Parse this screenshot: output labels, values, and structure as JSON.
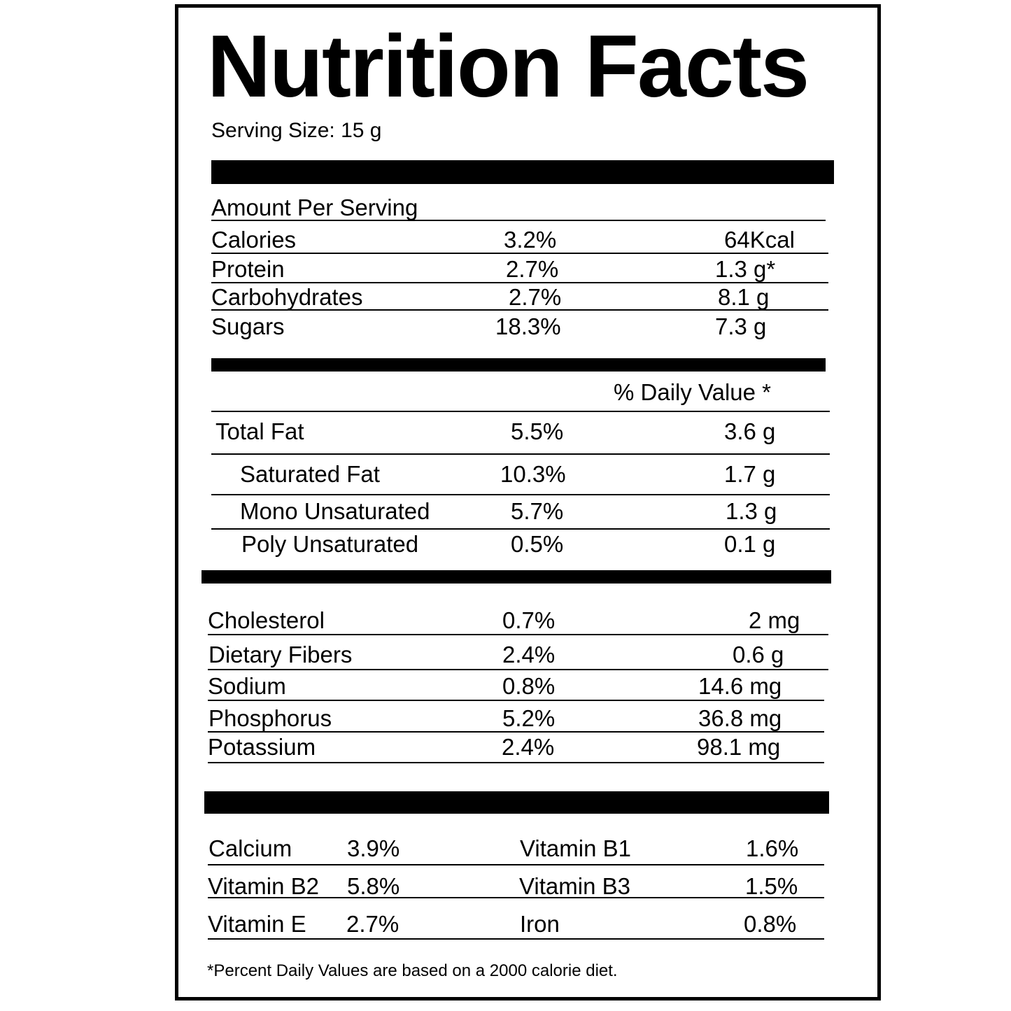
{
  "title": "Nutrition Facts",
  "serving_size": "Serving Size: 15 g",
  "amount_per_serving": "Amount Per Serving",
  "daily_value_header": "% Daily Value *",
  "section1": [
    {
      "name": "Calories",
      "percent": "3.2%",
      "amount": "64Kcal"
    },
    {
      "name": "Protein",
      "percent": "2.7%",
      "amount": "1.3 g*"
    },
    {
      "name": "Carbohydrates",
      "percent": "2.7%",
      "amount": "8.1 g"
    },
    {
      "name": "Sugars",
      "percent": "18.3%",
      "amount": "7.3 g"
    }
  ],
  "fats": [
    {
      "name": "Total Fat",
      "percent": "5.5%",
      "amount": "3.6 g"
    },
    {
      "name": "Saturated Fat",
      "percent": "10.3%",
      "amount": "1.7 g"
    },
    {
      "name": "Mono Unsaturated",
      "percent": "5.7%",
      "amount": "1.3 g"
    },
    {
      "name": "Poly Unsaturated",
      "percent": "0.5%",
      "amount": "0.1 g"
    }
  ],
  "section3": [
    {
      "name": "Cholesterol",
      "percent": "0.7%",
      "amount": "2 mg"
    },
    {
      "name": "Dietary Fibers",
      "percent": "2.4%",
      "amount": "0.6 g"
    },
    {
      "name": "Sodium",
      "percent": "0.8%",
      "amount": "14.6 mg"
    },
    {
      "name": "Phosphorus",
      "percent": "5.2%",
      "amount": "36.8 mg"
    },
    {
      "name": "Potassium",
      "percent": "2.4%",
      "amount": "98.1 mg"
    }
  ],
  "vitamins": [
    {
      "left_name": "Calcium",
      "left_value": "3.9%",
      "right_name": "Vitamin B1",
      "right_value": "1.6%"
    },
    {
      "left_name": "Vitamin B2",
      "left_value": "5.8%",
      "right_name": "Vitamin B3",
      "right_value": "1.5%"
    },
    {
      "left_name": "Vitamin E",
      "left_value": "2.7%",
      "right_name": "Iron",
      "right_value": "0.8%"
    }
  ],
  "footnote": "*Percent Daily Values are based on a 2000 calorie diet."
}
